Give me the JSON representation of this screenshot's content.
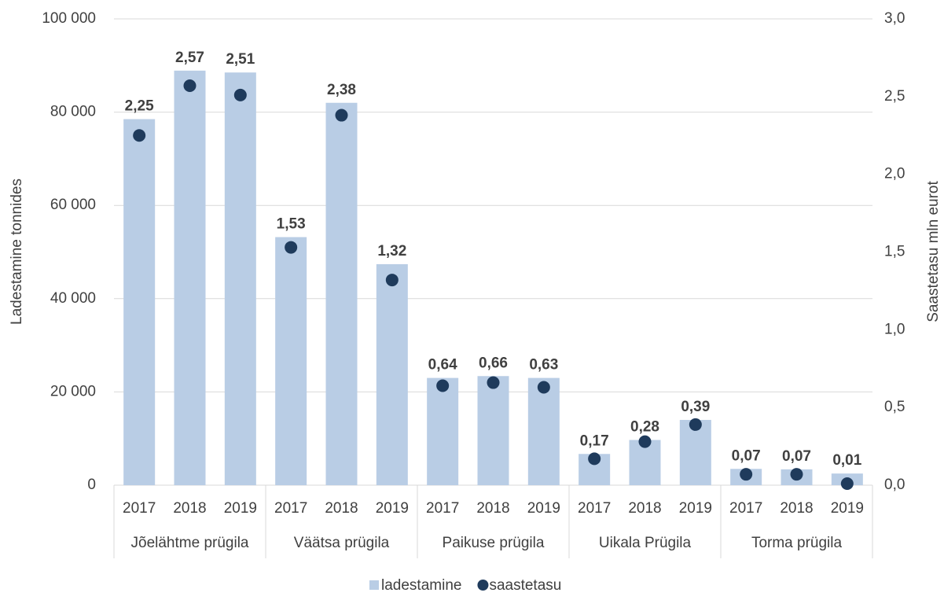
{
  "chart_data": {
    "type": "bar",
    "categories": [
      "2017",
      "2018",
      "2019",
      "2017",
      "2018",
      "2019",
      "2017",
      "2018",
      "2019",
      "2017",
      "2018",
      "2019",
      "2017",
      "2018",
      "2019"
    ],
    "groups": [
      "Jõelähtme prügila",
      "Väätsa prügila",
      "Paikuse prügila",
      "Uikala Prügila",
      "Torma prügila"
    ],
    "ylabel": "Ladestamine tonnides",
    "y2label": "Saastetasu mln eurot",
    "ylim": [
      0,
      100000
    ],
    "yticks": [
      0,
      {
        "value": 20000,
        "label": "20 000"
      },
      {
        "value": 40000,
        "label": "40 000"
      },
      {
        "value": 60000,
        "label": "60 000"
      },
      {
        "value": 80000,
        "label": "80 000"
      },
      {
        "value": 100000,
        "label": "100 000"
      }
    ],
    "y2lim": [
      0,
      3
    ],
    "y2ticks": [
      {
        "value": 0,
        "label": "0,0"
      },
      {
        "value": 0.5,
        "label": "0,5"
      },
      {
        "value": 1,
        "label": "1,0"
      },
      {
        "value": 1.5,
        "label": "1,5"
      },
      {
        "value": 2,
        "label": "2,0"
      },
      {
        "value": 2.5,
        "label": "2,5"
      },
      {
        "value": 3,
        "label": "3,0"
      }
    ],
    "grid": true,
    "legend": "bottom",
    "series": [
      {
        "name": "ladestamine",
        "type": "bar",
        "color": "#b9cde5",
        "values": [
          78500,
          88900,
          88500,
          53200,
          82000,
          47400,
          23000,
          23400,
          23000,
          6700,
          9700,
          14000,
          3500,
          3400,
          2500
        ]
      },
      {
        "name": "saastetasu",
        "type": "scatter",
        "axis": "y2",
        "color": "#1f3b5c",
        "values": [
          2.25,
          2.57,
          2.51,
          1.53,
          2.38,
          1.32,
          0.64,
          0.66,
          0.63,
          0.17,
          0.28,
          0.39,
          0.07,
          0.07,
          0.01
        ],
        "value_labels": [
          "2,25",
          "2,57",
          "2,51",
          "1,53",
          "2,38",
          "1,32",
          "0,64",
          "0,66",
          "0,63",
          "0,17",
          "0,28",
          "0,39",
          "0,07",
          "0,07",
          "0,01"
        ]
      }
    ]
  }
}
